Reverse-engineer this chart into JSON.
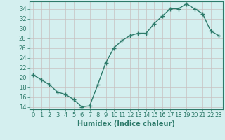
{
  "x": [
    0,
    1,
    2,
    3,
    4,
    5,
    6,
    7,
    8,
    9,
    10,
    11,
    12,
    13,
    14,
    15,
    16,
    17,
    18,
    19,
    20,
    21,
    22,
    23
  ],
  "y": [
    20.5,
    19.5,
    18.5,
    17.0,
    16.5,
    15.5,
    14.0,
    14.2,
    18.5,
    23.0,
    26.0,
    27.5,
    28.5,
    29.0,
    29.0,
    31.0,
    32.5,
    34.0,
    34.0,
    35.0,
    34.0,
    33.0,
    29.5,
    28.5
  ],
  "line_color": "#2d7a6a",
  "marker": "+",
  "marker_size": 4,
  "bg_color": "#d4efef",
  "grid_color": "#c8c0c0",
  "xlabel": "Humidex (Indice chaleur)",
  "ylim": [
    13.5,
    35.5
  ],
  "xlim": [
    -0.5,
    23.5
  ],
  "yticks": [
    14,
    16,
    18,
    20,
    22,
    24,
    26,
    28,
    30,
    32,
    34
  ],
  "xticks": [
    0,
    1,
    2,
    3,
    4,
    5,
    6,
    7,
    8,
    9,
    10,
    11,
    12,
    13,
    14,
    15,
    16,
    17,
    18,
    19,
    20,
    21,
    22,
    23
  ],
  "tick_color": "#2d7a6a",
  "label_color": "#2d7a6a",
  "xlabel_fontsize": 7,
  "tick_fontsize": 6,
  "lw": 1.0,
  "marker_lw": 1.0
}
